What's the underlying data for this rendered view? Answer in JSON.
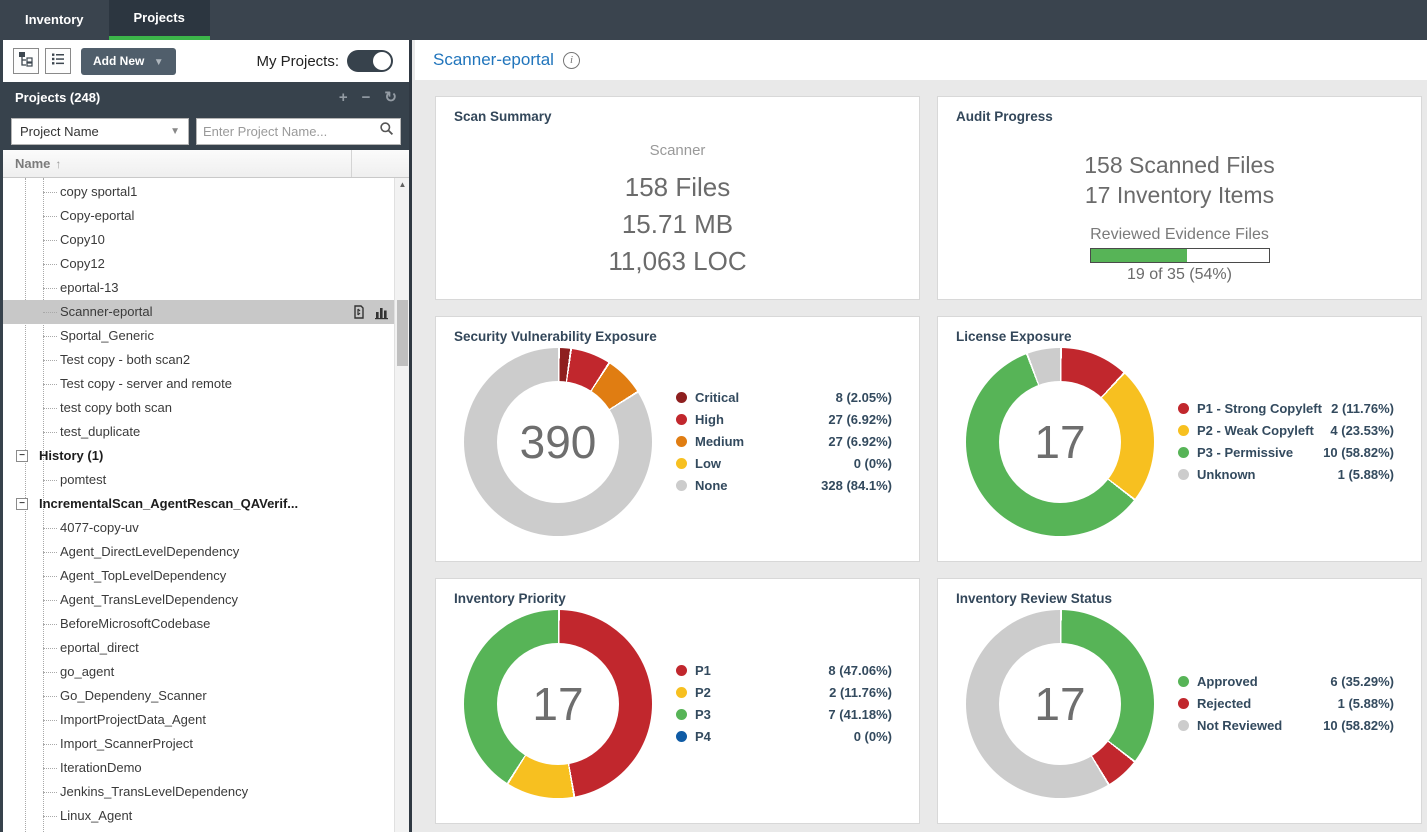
{
  "topbar": {
    "tabs": [
      {
        "label": "Inventory",
        "active": false
      },
      {
        "label": "Projects",
        "active": true
      }
    ]
  },
  "sidebar": {
    "toolbar": {
      "add_new_label": "Add New",
      "my_projects_label": "My Projects:",
      "my_projects_toggle_on": true,
      "icons": [
        "tree-view-icon",
        "list-view-icon"
      ]
    },
    "panel_header": {
      "title": "Projects (248)",
      "icons": [
        "add-project-icon",
        "remove-project-icon",
        "refresh-icon"
      ]
    },
    "search": {
      "filter_selected": "Project Name",
      "placeholder": "Enter Project Name..."
    },
    "columns": {
      "name_header": "Name",
      "sort_direction": "asc"
    },
    "tree": [
      {
        "label": "copy sportal1",
        "level": 2
      },
      {
        "label": "Copy-eportal",
        "level": 2
      },
      {
        "label": "Copy10",
        "level": 2
      },
      {
        "label": "Copy12",
        "level": 2
      },
      {
        "label": "eportal-13",
        "level": 2
      },
      {
        "label": "Scanner-eportal",
        "level": 2,
        "selected": true,
        "icons": [
          "scan-badge-icon",
          "bar-chart-icon"
        ]
      },
      {
        "label": "Sportal_Generic",
        "level": 2
      },
      {
        "label": "Test copy - both scan2",
        "level": 2
      },
      {
        "label": "Test copy - server and remote",
        "level": 2
      },
      {
        "label": "test copy both scan",
        "level": 2
      },
      {
        "label": "test_duplicate",
        "level": 2
      },
      {
        "label": "History (1)",
        "level": 1,
        "bold": true,
        "expander": true
      },
      {
        "label": "pomtest",
        "level": 2
      },
      {
        "label": "IncrementalScan_AgentRescan_QAVerif...",
        "level": 1,
        "bold": true,
        "expander": true
      },
      {
        "label": "4077-copy-uv",
        "level": 2
      },
      {
        "label": "Agent_DirectLevelDependency",
        "level": 2
      },
      {
        "label": "Agent_TopLevelDependency",
        "level": 2
      },
      {
        "label": "Agent_TransLevelDependency",
        "level": 2
      },
      {
        "label": "BeforeMicrosoftCodebase",
        "level": 2
      },
      {
        "label": "eportal_direct",
        "level": 2
      },
      {
        "label": "go_agent",
        "level": 2
      },
      {
        "label": "Go_Dependeny_Scanner",
        "level": 2
      },
      {
        "label": "ImportProjectData_Agent",
        "level": 2
      },
      {
        "label": "Import_ScannerProject",
        "level": 2
      },
      {
        "label": "IterationDemo",
        "level": 2
      },
      {
        "label": "Jenkins_TransLevelDependency",
        "level": 2
      },
      {
        "label": "Linux_Agent",
        "level": 2
      }
    ]
  },
  "main": {
    "title": "Scanner-eportal",
    "cards": {
      "scan_summary": {
        "title": "Scan Summary",
        "subtitle": "Scanner",
        "lines": [
          "158 Files",
          "15.71 MB",
          "11,063 LOC"
        ]
      },
      "audit_progress": {
        "title": "Audit Progress",
        "lines": [
          "158 Scanned Files",
          "17 Inventory Items"
        ],
        "progress_label": "Reviewed Evidence Files",
        "progress_pct": 54,
        "progress_text": "19 of 35 (54%)"
      }
    }
  },
  "chart_data": [
    {
      "type": "donut",
      "title": "Security Vulnerability Exposure",
      "center": "390",
      "total": 390,
      "legend_position": "right",
      "slices": [
        {
          "label": "Critical",
          "value": 8,
          "pct": 2.05,
          "display": "8 (2.05%)",
          "color": "#8e1f1f"
        },
        {
          "label": "High",
          "value": 27,
          "pct": 6.92,
          "display": "27 (6.92%)",
          "color": "#c1272d"
        },
        {
          "label": "Medium",
          "value": 27,
          "pct": 6.92,
          "display": "27 (6.92%)",
          "color": "#e07d12"
        },
        {
          "label": "Low",
          "value": 0,
          "pct": 0,
          "display": "0 (0%)",
          "color": "#f7c020"
        },
        {
          "label": "None",
          "value": 328,
          "pct": 84.1,
          "display": "328 (84.1%)",
          "color": "#cccccc"
        }
      ]
    },
    {
      "type": "donut",
      "title": "License Exposure",
      "center": "17",
      "total": 17,
      "legend_position": "right",
      "slices": [
        {
          "label": "P1 - Strong Copyleft",
          "value": 2,
          "pct": 11.76,
          "display": "2 (11.76%)",
          "color": "#c1272d"
        },
        {
          "label": "P2 - Weak Copyleft",
          "value": 4,
          "pct": 23.53,
          "display": "4 (23.53%)",
          "color": "#f7c020"
        },
        {
          "label": "P3 - Permissive",
          "value": 10,
          "pct": 58.82,
          "display": "10 (58.82%)",
          "color": "#57b457"
        },
        {
          "label": "Unknown",
          "value": 1,
          "pct": 5.88,
          "display": "1 (5.88%)",
          "color": "#cccccc"
        }
      ]
    },
    {
      "type": "donut",
      "title": "Inventory Priority",
      "center": "17",
      "total": 17,
      "legend_position": "right",
      "slices": [
        {
          "label": "P1",
          "value": 8,
          "pct": 47.06,
          "display": "8 (47.06%)",
          "color": "#c1272d"
        },
        {
          "label": "P2",
          "value": 2,
          "pct": 11.76,
          "display": "2 (11.76%)",
          "color": "#f7c020"
        },
        {
          "label": "P3",
          "value": 7,
          "pct": 41.18,
          "display": "7 (41.18%)",
          "color": "#57b457"
        },
        {
          "label": "P4",
          "value": 0,
          "pct": 0,
          "display": "0 (0%)",
          "color": "#0f5ba5"
        }
      ]
    },
    {
      "type": "donut",
      "title": "Inventory Review Status",
      "center": "17",
      "total": 17,
      "legend_position": "right",
      "slices": [
        {
          "label": "Approved",
          "value": 6,
          "pct": 35.29,
          "display": "6 (35.29%)",
          "color": "#57b457"
        },
        {
          "label": "Rejected",
          "value": 1,
          "pct": 5.88,
          "display": "1 (5.88%)",
          "color": "#c1272d"
        },
        {
          "label": "Not Reviewed",
          "value": 10,
          "pct": 58.82,
          "display": "10 (58.82%)",
          "color": "#cccccc"
        }
      ]
    }
  ],
  "colors": {
    "topbar_bg": "#3a444e",
    "active_tab_green": "#3cb54a",
    "panel_dark": "#37424c",
    "title_blue": "#2175bc",
    "card_title": "#33475a",
    "progress_green": "#57b457",
    "selected_row": "#c8c8c8"
  }
}
